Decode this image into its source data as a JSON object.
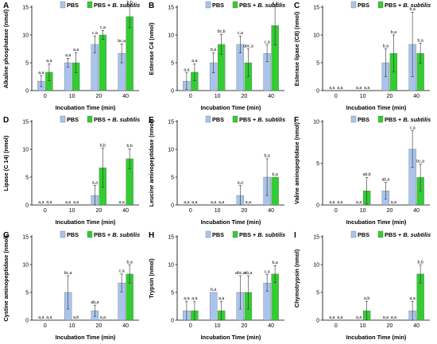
{
  "legend": {
    "pbs": "PBS",
    "pbs_bs_prefix": "PBS + ",
    "pbs_bs_italic": "B. subtilis"
  },
  "colors": {
    "pbs": "#a9c4ec",
    "pbs_bs": "#33cc33",
    "axis": "#000000"
  },
  "chart_data": [
    {
      "panel": "A",
      "type": "bar",
      "categories": [
        "0",
        "10",
        "20",
        "40"
      ],
      "xlabel": "Incubation Time (min)",
      "ylabel": "Alkaline phosphatase (nmol)",
      "ylim": [
        0,
        15
      ],
      "yticks": [
        0,
        5,
        10,
        15
      ],
      "series": [
        {
          "name": "PBS",
          "values": [
            1.7,
            5.0,
            8.3,
            6.7
          ],
          "errors": [
            1.0,
            0.8,
            1.5,
            1.7
          ],
          "labels": [
            "a,a",
            "a,a",
            "c,a",
            "bc,a"
          ]
        },
        {
          "name": "PBS + B. subtilis",
          "values": [
            3.3,
            5.0,
            10.0,
            13.3
          ],
          "errors": [
            1.5,
            1.8,
            0.8,
            2.0
          ],
          "labels": [
            "a,a",
            "a,a",
            "c,a",
            "b,b"
          ]
        }
      ]
    },
    {
      "panel": "B",
      "type": "bar",
      "categories": [
        "0",
        "10",
        "20",
        "40"
      ],
      "xlabel": "Incubation Time (min)",
      "ylabel": "Esterase C4 (nmol)",
      "ylim": [
        0,
        15
      ],
      "yticks": [
        0,
        5,
        10,
        15
      ],
      "series": [
        {
          "name": "PBS",
          "values": [
            1.7,
            5.0,
            8.3,
            6.7
          ],
          "errors": [
            1.5,
            1.8,
            1.5,
            1.5
          ],
          "labels": [
            "a,a",
            "b,a",
            "c,a",
            "c,a"
          ]
        },
        {
          "name": "PBS + B. subtilis",
          "values": [
            3.3,
            8.3,
            5.0,
            11.7
          ],
          "errors": [
            1.5,
            1.8,
            2.5,
            3.5
          ],
          "labels": [
            "a,a",
            "bc,b",
            "abc,a",
            "c,a"
          ]
        }
      ]
    },
    {
      "panel": "C",
      "type": "bar",
      "categories": [
        "0",
        "10",
        "20",
        "40"
      ],
      "xlabel": "Incubation Time (min)",
      "ylabel": "Esterase lipase (C8) (nmol)",
      "ylim": [
        0,
        15
      ],
      "yticks": [
        0,
        5,
        10,
        15
      ],
      "series": [
        {
          "name": "PBS",
          "values": [
            0,
            0,
            5.0,
            8.3
          ],
          "errors": [
            0,
            0,
            2.5,
            5.8
          ],
          "labels": [
            "a,a",
            "a,a",
            "b,a",
            "b,a"
          ]
        },
        {
          "name": "PBS + B. subtilis",
          "values": [
            0,
            0,
            6.7,
            6.7
          ],
          "errors": [
            0,
            0,
            3.3,
            1.8
          ],
          "labels": [
            "a,a",
            "a,a",
            "b,a",
            "b,a"
          ]
        }
      ]
    },
    {
      "panel": "D",
      "type": "bar",
      "categories": [
        "0",
        "10",
        "20",
        "40"
      ],
      "xlabel": "Incubation Time (min)",
      "ylabel": "Lipase (C 14) (nmol)",
      "ylim": [
        0,
        15
      ],
      "yticks": [
        0,
        5,
        10,
        15
      ],
      "series": [
        {
          "name": "PBS",
          "values": [
            0,
            0,
            1.7,
            0
          ],
          "errors": [
            0,
            0,
            1.8,
            0
          ],
          "labels": [
            "a,a",
            "a,a",
            "a,a",
            "a,a"
          ]
        },
        {
          "name": "PBS + B. subtilis",
          "values": [
            0,
            0,
            6.7,
            8.3
          ],
          "errors": [
            0,
            0,
            3.5,
            1.8
          ],
          "labels": [
            "a,a",
            "a,a",
            "b,b",
            "b,b"
          ]
        }
      ]
    },
    {
      "panel": "E",
      "type": "bar",
      "categories": [
        "0",
        "10",
        "20",
        "40"
      ],
      "xlabel": "Incubation Time (min)",
      "ylabel": "Leucine aminopeptidase (nmol)",
      "ylim": [
        0,
        15
      ],
      "yticks": [
        0,
        5,
        10,
        15
      ],
      "series": [
        {
          "name": "PBS",
          "values": [
            0,
            0,
            1.7,
            5.0
          ],
          "errors": [
            0,
            0,
            1.8,
            3.3
          ],
          "labels": [
            "a,a",
            "a,a",
            "a,a",
            "b,a"
          ]
        },
        {
          "name": "PBS + B. subtilis",
          "values": [
            0,
            0,
            0,
            5.0
          ],
          "errors": [
            0,
            0,
            0,
            0
          ],
          "labels": [
            "a,a",
            "a,a",
            "a,a",
            "b,a"
          ]
        }
      ]
    },
    {
      "panel": "F",
      "type": "bar",
      "categories": [
        "0",
        "10",
        "20",
        "40"
      ],
      "xlabel": "Incubation Time (min)",
      "ylabel": "Valine aminopeptidase (nmol)",
      "ylim": [
        0,
        10
      ],
      "yticks": [
        0,
        5,
        10
      ],
      "series": [
        {
          "name": "PBS",
          "values": [
            0,
            0,
            1.7,
            6.7
          ],
          "errors": [
            0,
            0,
            1.0,
            2.2
          ],
          "labels": [
            "a,a",
            "a,a",
            "ab,a",
            "c,a"
          ]
        },
        {
          "name": "PBS + B. subtilis",
          "values": [
            0,
            1.7,
            0,
            3.3
          ],
          "errors": [
            0,
            1.6,
            0,
            1.6
          ],
          "labels": [
            "a,a",
            "ab,b",
            "a,a",
            "bc,a"
          ]
        }
      ]
    },
    {
      "panel": "G",
      "type": "bar",
      "categories": [
        "0",
        "10",
        "20",
        "40"
      ],
      "xlabel": "Incubation Time (min)",
      "ylabel": "Cystine aminopeptidase (nmol)",
      "ylim": [
        0,
        15
      ],
      "yticks": [
        0,
        5,
        10,
        15
      ],
      "series": [
        {
          "name": "PBS",
          "values": [
            0,
            5.0,
            1.7,
            6.7
          ],
          "errors": [
            0,
            3.0,
            1.0,
            1.6
          ],
          "labels": [
            "a,a",
            "bc,a",
            "ab,a",
            "c,a"
          ]
        },
        {
          "name": "PBS + B. subtilis",
          "values": [
            0,
            0,
            0,
            8.3
          ],
          "errors": [
            0,
            0,
            0,
            1.6
          ],
          "labels": [
            "a,a",
            "a,b",
            "a,a",
            "b,a"
          ]
        }
      ]
    },
    {
      "panel": "H",
      "type": "bar",
      "categories": [
        "0",
        "10",
        "20",
        "40"
      ],
      "xlabel": "Incubation Time (min)",
      "ylabel": "Trypsin (nmol)",
      "ylim": [
        0,
        15
      ],
      "yticks": [
        0,
        5,
        10,
        15
      ],
      "series": [
        {
          "name": "PBS",
          "values": [
            1.7,
            5.0,
            5.0,
            6.7
          ],
          "errors": [
            1.7,
            0,
            3.0,
            1.5
          ],
          "labels": [
            "a,a",
            "b,a",
            "abc,a",
            "c,a"
          ]
        },
        {
          "name": "PBS + B. subtilis",
          "values": [
            1.7,
            1.7,
            5.0,
            8.3
          ],
          "errors": [
            1.7,
            1.7,
            3.0,
            1.5
          ],
          "labels": [
            "a,a",
            "a,a",
            "ab,a",
            "b,a"
          ]
        }
      ]
    },
    {
      "panel": "I",
      "type": "bar",
      "categories": [
        "0",
        "10",
        "20",
        "40"
      ],
      "xlabel": "Incubation Time (min)",
      "ylabel": "Chymotrypsin (nmol)",
      "ylim": [
        0,
        15
      ],
      "yticks": [
        0,
        5,
        10,
        15
      ],
      "series": [
        {
          "name": "PBS",
          "values": [
            0,
            0,
            0,
            1.7
          ],
          "errors": [
            0,
            0,
            0,
            1.7
          ],
          "labels": [
            "a,a",
            "a,a",
            "a,a",
            "a,a"
          ]
        },
        {
          "name": "PBS + B. subtilis",
          "values": [
            0,
            1.7,
            0,
            8.3
          ],
          "errors": [
            0,
            1.7,
            0,
            1.6
          ],
          "labels": [
            "a,a",
            "a,b",
            "a,a",
            "b,b"
          ]
        }
      ]
    }
  ]
}
